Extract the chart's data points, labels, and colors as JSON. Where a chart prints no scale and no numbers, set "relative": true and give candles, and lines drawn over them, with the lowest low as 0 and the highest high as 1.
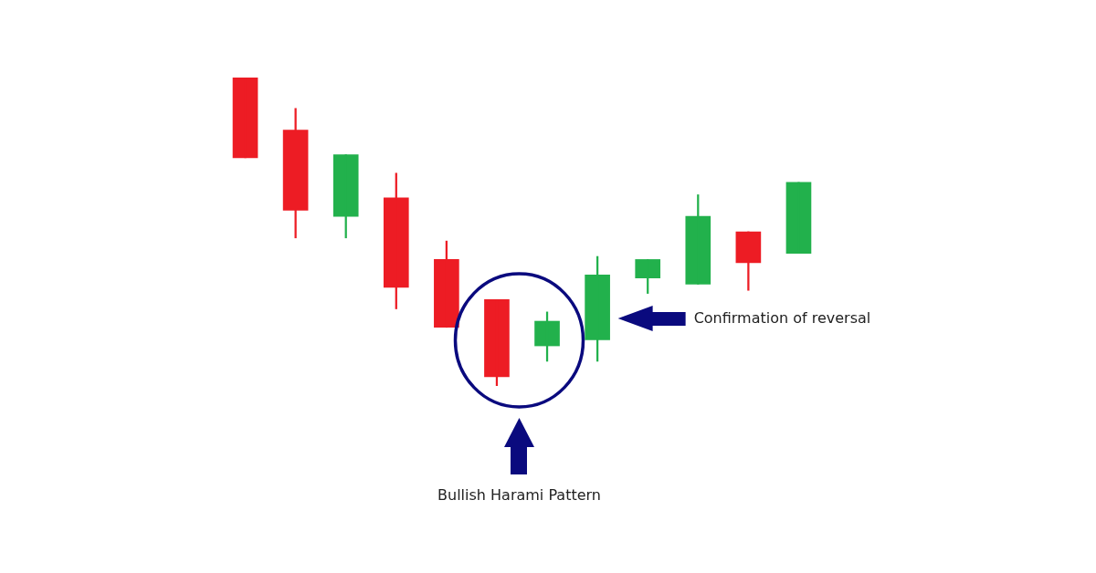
{
  "chart_data": {
    "type": "candlestick",
    "categories": [
      null,
      null,
      null,
      null,
      null,
      null,
      null,
      null,
      null,
      null,
      null,
      null
    ],
    "ohlc": [
      [
        1,
        1,
        0.74,
        0.74
      ],
      [
        0.83,
        0.9,
        0.48,
        0.57
      ],
      [
        0.55,
        0.75,
        0.48,
        0.75
      ],
      [
        0.61,
        0.69,
        0.25,
        0.32
      ],
      [
        0.41,
        0.47,
        0.19,
        0.19
      ],
      [
        0.28,
        0.28,
        0,
        0.03
      ],
      [
        0.13,
        0.24,
        0.08,
        0.21
      ],
      [
        0.15,
        0.42,
        0.08,
        0.36
      ],
      [
        0.35,
        0.41,
        0.3,
        0.41
      ],
      [
        0.33,
        0.62,
        0.33,
        0.55
      ],
      [
        0.5,
        0.5,
        0.31,
        0.4
      ],
      [
        0.43,
        0.66,
        0.43,
        0.66
      ]
    ],
    "colors": [
      "#ed1c24",
      "#ed1c24",
      "#22b14c",
      "#ed1c24",
      "#ed1c24",
      "#ed1c24",
      "#22b14c",
      "#22b14c",
      "#22b14c",
      "#22b14c",
      "#ed1c24",
      "#22b14c"
    ],
    "relative": true,
    "tick_labels": false,
    "annotations": [
      "Bullish Harami Pattern",
      "Confirmation of reversal"
    ]
  }
}
